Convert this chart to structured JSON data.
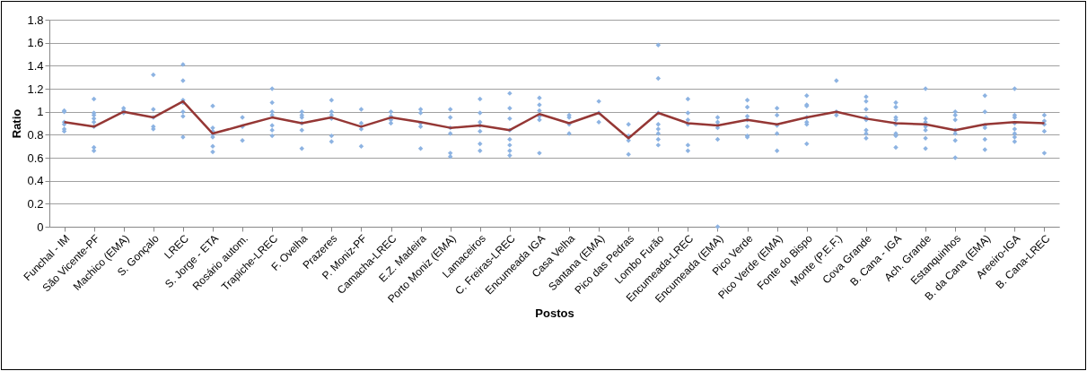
{
  "chart_data": {
    "type": "line",
    "xlabel": "Postos",
    "ylabel": "Ratio",
    "categories": [
      "Funchal - IM",
      "São Vicente-PF",
      "Machico (EMA)",
      "S. Gonçalo",
      "LREC",
      "S. Jorge - ETA",
      "Rosário autom.",
      "Trapiche-LREC",
      "F. Ovelha",
      "Prazeres",
      "P. Moniz-PF",
      "Camacha-LREC",
      "E.Z. Madeira",
      "Porto Moniz (EMA)",
      "Lamaceiros",
      "C. Freiras-LREC",
      "Encumeada IGA",
      "Casa Velha",
      "Santana (EMA)",
      "Pico das Pedras",
      "Lombo Furão",
      "Encumeada-LREC",
      "Encumeada (EMA)",
      "Pico Verde",
      "Pico Verde (EMA)",
      "Fonte do Bispo",
      "Monte (P.E.F.)",
      "Cova Grande",
      "B. Cana - IGA",
      "Ach. Grande",
      "Estanquinhos",
      "B. da Cana (EMA)",
      "Areeiro-IGA",
      "B. Cana-LREC"
    ],
    "series": [
      {
        "type": "scatter",
        "marker": "diamond",
        "color": "#8db3e2",
        "x": [
          "Funchal - IM",
          "Funchal - IM",
          "Funchal - IM",
          "Funchal - IM",
          "Funchal - IM",
          "Funchal - IM",
          "São Vicente-PF",
          "São Vicente-PF",
          "São Vicente-PF",
          "São Vicente-PF",
          "São Vicente-PF",
          "São Vicente-PF",
          "São Vicente-PF",
          "São Vicente-PF",
          "Machico (EMA)",
          "Machico (EMA)",
          "Machico (EMA)",
          "S. Gonçalo",
          "S. Gonçalo",
          "S. Gonçalo",
          "S. Gonçalo",
          "S. Gonçalo",
          "LREC",
          "LREC",
          "LREC",
          "LREC",
          "LREC",
          "LREC",
          "LREC",
          "S. Jorge - ETA",
          "S. Jorge - ETA",
          "S. Jorge - ETA",
          "S. Jorge - ETA",
          "S. Jorge - ETA",
          "S. Jorge - ETA",
          "S. Jorge - ETA",
          "Rosário autom.",
          "Rosário autom.",
          "Rosário autom.",
          "Trapiche-LREC",
          "Trapiche-LREC",
          "Trapiche-LREC",
          "Trapiche-LREC",
          "Trapiche-LREC",
          "Trapiche-LREC",
          "Trapiche-LREC",
          "F. Ovelha",
          "F. Ovelha",
          "F. Ovelha",
          "F. Ovelha",
          "F. Ovelha",
          "F. Ovelha",
          "Prazeres",
          "Prazeres",
          "Prazeres",
          "Prazeres",
          "Prazeres",
          "Prazeres",
          "P. Moniz-PF",
          "P. Moniz-PF",
          "P. Moniz-PF",
          "P. Moniz-PF",
          "Camacha-LREC",
          "Camacha-LREC",
          "Camacha-LREC",
          "Camacha-LREC",
          "E.Z. Madeira",
          "E.Z. Madeira",
          "E.Z. Madeira",
          "E.Z. Madeira",
          "E.Z. Madeira",
          "Porto Moniz (EMA)",
          "Porto Moniz (EMA)",
          "Porto Moniz (EMA)",
          "Porto Moniz (EMA)",
          "Porto Moniz (EMA)",
          "Porto Moniz (EMA)",
          "Lamaceiros",
          "Lamaceiros",
          "Lamaceiros",
          "Lamaceiros",
          "Lamaceiros",
          "Lamaceiros",
          "Lamaceiros",
          "C. Freiras-LREC",
          "C. Freiras-LREC",
          "C. Freiras-LREC",
          "C. Freiras-LREC",
          "C. Freiras-LREC",
          "C. Freiras-LREC",
          "C. Freiras-LREC",
          "C. Freiras-LREC",
          "Encumeada IGA",
          "Encumeada IGA",
          "Encumeada IGA",
          "Encumeada IGA",
          "Encumeada IGA",
          "Encumeada IGA",
          "Casa Velha",
          "Casa Velha",
          "Casa Velha",
          "Casa Velha",
          "Santana (EMA)",
          "Santana (EMA)",
          "Santana (EMA)",
          "Pico das Pedras",
          "Pico das Pedras",
          "Pico das Pedras",
          "Pico das Pedras",
          "Lombo Furão",
          "Lombo Furão",
          "Lombo Furão",
          "Lombo Furão",
          "Lombo Furão",
          "Lombo Furão",
          "Lombo Furão",
          "Lombo Furão",
          "Encumeada-LREC",
          "Encumeada-LREC",
          "Encumeada-LREC",
          "Encumeada-LREC",
          "Encumeada-LREC",
          "Encumeada-LREC",
          "Encumeada (EMA)",
          "Encumeada (EMA)",
          "Encumeada (EMA)",
          "Encumeada (EMA)",
          "Encumeada (EMA)",
          "Encumeada (EMA)",
          "Pico Verde",
          "Pico Verde",
          "Pico Verde",
          "Pico Verde",
          "Pico Verde",
          "Pico Verde",
          "Pico Verde",
          "Pico Verde (EMA)",
          "Pico Verde (EMA)",
          "Pico Verde (EMA)",
          "Pico Verde (EMA)",
          "Pico Verde (EMA)",
          "Fonte do Bispo",
          "Fonte do Bispo",
          "Fonte do Bispo",
          "Fonte do Bispo",
          "Fonte do Bispo",
          "Fonte do Bispo",
          "Fonte do Bispo",
          "Monte (P.E.F.)",
          "Monte (P.E.F.)",
          "Monte (P.E.F.)",
          "Cova Grande",
          "Cova Grande",
          "Cova Grande",
          "Cova Grande",
          "Cova Grande",
          "Cova Grande",
          "Cova Grande",
          "Cova Grande",
          "B. Cana - IGA",
          "B. Cana - IGA",
          "B. Cana - IGA",
          "B. Cana - IGA",
          "B. Cana - IGA",
          "B. Cana - IGA",
          "B. Cana - IGA",
          "B. Cana - IGA",
          "Ach. Grande",
          "Ach. Grande",
          "Ach. Grande",
          "Ach. Grande",
          "Ach. Grande",
          "Ach. Grande",
          "Ach. Grande",
          "Estanquinhos",
          "Estanquinhos",
          "Estanquinhos",
          "Estanquinhos",
          "Estanquinhos",
          "Estanquinhos",
          "Estanquinhos",
          "B. da Cana (EMA)",
          "B. da Cana (EMA)",
          "B. da Cana (EMA)",
          "B. da Cana (EMA)",
          "B. da Cana (EMA)",
          "B. da Cana (EMA)",
          "Areeiro-IGA",
          "Areeiro-IGA",
          "Areeiro-IGA",
          "Areeiro-IGA",
          "Areeiro-IGA",
          "Areeiro-IGA",
          "Areeiro-IGA",
          "Areeiro-IGA",
          "B. Cana-LREC",
          "B. Cana-LREC",
          "B. Cana-LREC",
          "B. Cana-LREC",
          "B. Cana-LREC"
        ],
        "values": [
          1.01,
          1.0,
          0.91,
          0.89,
          0.85,
          0.83,
          1.11,
          0.99,
          0.97,
          0.94,
          0.91,
          0.87,
          0.69,
          0.66,
          1.03,
          1.01,
          0.99,
          1.32,
          1.02,
          0.95,
          0.87,
          0.85,
          1.41,
          1.27,
          1.1,
          1.08,
          1.0,
          0.96,
          0.78,
          1.05,
          0.86,
          0.83,
          0.8,
          0.78,
          0.7,
          0.65,
          0.95,
          0.87,
          0.75,
          1.2,
          1.08,
          1.0,
          0.97,
          0.88,
          0.84,
          0.79,
          1.0,
          0.97,
          0.95,
          0.9,
          0.84,
          0.68,
          1.1,
          1.0,
          0.97,
          0.94,
          0.79,
          0.74,
          1.02,
          0.9,
          0.85,
          0.7,
          1.0,
          0.96,
          0.93,
          0.9,
          1.02,
          0.99,
          0.9,
          0.87,
          0.68,
          1.02,
          0.95,
          0.86,
          0.81,
          0.64,
          0.61,
          1.11,
          0.99,
          0.91,
          0.88,
          0.83,
          0.72,
          0.66,
          1.16,
          1.03,
          0.94,
          0.84,
          0.76,
          0.71,
          0.66,
          0.62,
          1.12,
          1.06,
          1.01,
          0.96,
          0.93,
          0.64,
          0.97,
          0.95,
          0.89,
          0.81,
          1.09,
          0.99,
          0.91,
          0.89,
          0.79,
          0.75,
          0.63,
          1.58,
          1.29,
          0.99,
          0.89,
          0.85,
          0.81,
          0.76,
          0.71,
          1.11,
          0.99,
          0.93,
          0.89,
          0.71,
          0.66,
          0.95,
          0.91,
          0.88,
          0.86,
          0.76,
          0.0,
          1.1,
          1.04,
          0.96,
          0.93,
          0.87,
          0.79,
          0.78,
          1.03,
          0.97,
          0.88,
          0.81,
          0.66,
          1.14,
          1.06,
          1.05,
          0.95,
          0.91,
          0.89,
          0.72,
          1.27,
          1.0,
          0.97,
          1.13,
          1.09,
          1.02,
          0.95,
          0.93,
          0.84,
          0.81,
          0.77,
          1.08,
          1.04,
          0.95,
          0.93,
          0.89,
          0.81,
          0.79,
          0.69,
          1.2,
          0.94,
          0.91,
          0.87,
          0.84,
          0.77,
          0.68,
          1.0,
          0.97,
          0.93,
          0.84,
          0.81,
          0.75,
          0.6,
          1.14,
          1.0,
          0.88,
          0.86,
          0.76,
          0.67,
          1.2,
          0.97,
          0.95,
          0.9,
          0.85,
          0.81,
          0.78,
          0.74,
          0.97,
          0.92,
          0.89,
          0.83,
          0.64
        ]
      },
      {
        "color": "#953735",
        "values": [
          0.91,
          0.87,
          1.0,
          0.95,
          1.09,
          0.81,
          0.88,
          0.95,
          0.9,
          0.95,
          0.87,
          0.95,
          0.91,
          0.86,
          0.88,
          0.84,
          0.98,
          0.9,
          0.99,
          0.77,
          0.99,
          0.9,
          0.88,
          0.93,
          0.89,
          0.95,
          1.0,
          0.94,
          0.9,
          0.89,
          0.84,
          0.89,
          0.91,
          0.9
        ]
      }
    ],
    "ylim": [
      0,
      1.8
    ],
    "yticks": [
      0,
      0.2,
      0.4,
      0.6,
      0.8,
      1,
      1.2,
      1.4,
      1.6,
      1.8
    ],
    "grid": "y"
  }
}
